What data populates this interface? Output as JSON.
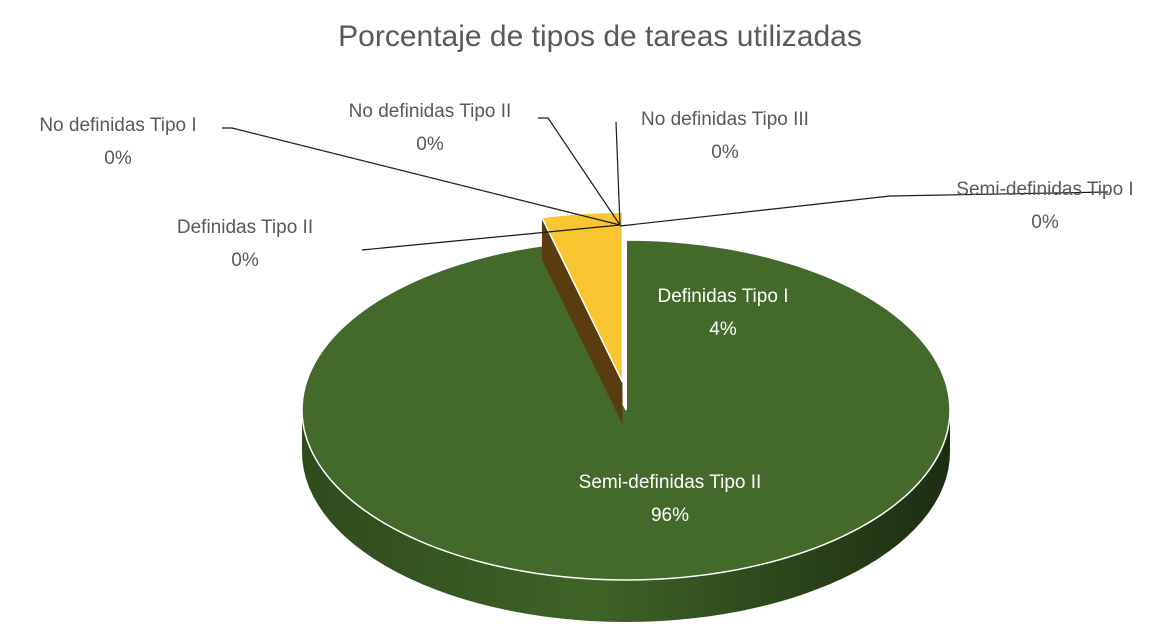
{
  "chart_data": {
    "type": "pie",
    "title": "Porcentaje de tipos de tareas utilizadas",
    "categories": [
      "Semi-definidas Tipo II",
      "Definidas Tipo I",
      "Definidas Tipo II",
      "No definidas Tipo I",
      "No definidas Tipo II",
      "No definidas Tipo III",
      "Semi-definidas Tipo I"
    ],
    "values": [
      96,
      4,
      0,
      0,
      0,
      0,
      0
    ],
    "value_labels": [
      "96%",
      "4%",
      "0%",
      "0%",
      "0%",
      "0%",
      "0%"
    ],
    "colors": [
      "#436a2a",
      "#f7c630",
      "#7a5a1e",
      "#5b9bd5",
      "#a5a5a5",
      "#ed7d31",
      "#4472c4"
    ],
    "explode": [
      0,
      1,
      0,
      0,
      0,
      0,
      0
    ]
  }
}
